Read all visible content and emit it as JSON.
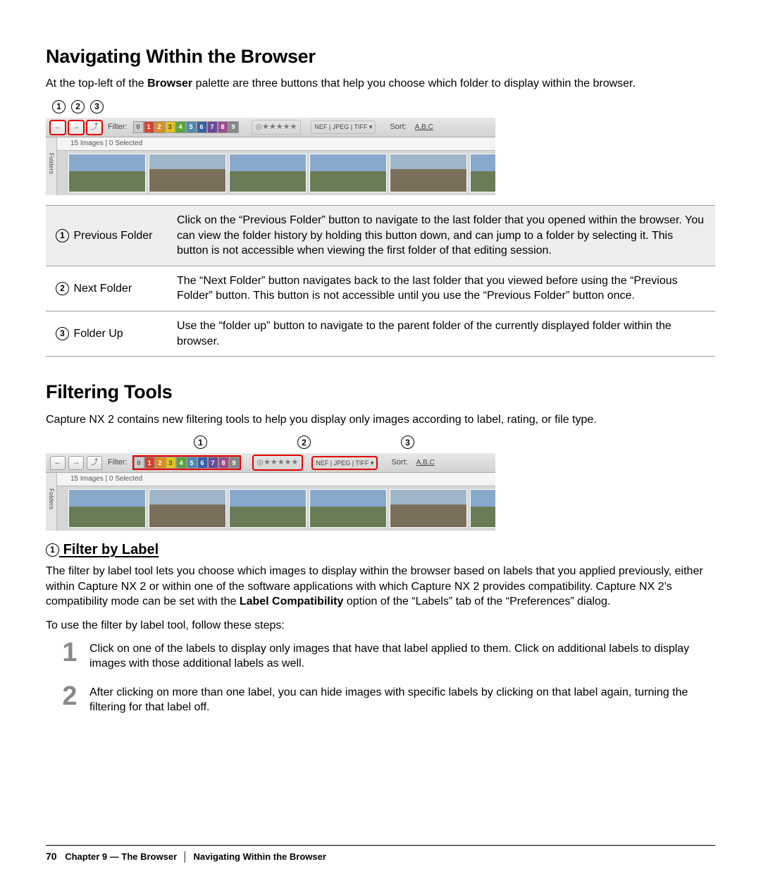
{
  "section1": {
    "heading": "Navigating Within the Browser",
    "intro_before": "At the top-left of the ",
    "intro_bold": "Browser",
    "intro_after": " palette are three buttons that help you choose which folder to display within the browser.",
    "callouts": [
      "1",
      "2",
      "3"
    ]
  },
  "screenshot1": {
    "filter_label": "Filter:",
    "labelchips": [
      {
        "t": "0",
        "c": "#cccccc",
        "fc": "#555"
      },
      {
        "t": "1",
        "c": "#d4442a",
        "fc": "#fff"
      },
      {
        "t": "2",
        "c": "#e38a1f",
        "fc": "#fff"
      },
      {
        "t": "3",
        "c": "#e2c21e",
        "fc": "#444"
      },
      {
        "t": "4",
        "c": "#5aa33a",
        "fc": "#fff"
      },
      {
        "t": "5",
        "c": "#4a8db0",
        "fc": "#fff"
      },
      {
        "t": "6",
        "c": "#3a5ea8",
        "fc": "#fff"
      },
      {
        "t": "7",
        "c": "#6b4a9a",
        "fc": "#fff"
      },
      {
        "t": "8",
        "c": "#a04a8c",
        "fc": "#fff"
      },
      {
        "t": "9",
        "c": "#888888",
        "fc": "#fff"
      }
    ],
    "stars": "◎★★★★★",
    "filetype": "NEF | JPEG | TIFF ▾",
    "sort_label": "Sort:",
    "sort_val": "A,B,C",
    "status": "15 Images | 0 Selected",
    "sidebar": "Folders"
  },
  "desc_rows": [
    {
      "n": "1",
      "label": "Previous Folder",
      "text": "Click on the “Previous Folder” button to navigate to the last folder that you opened within the browser. You can view the folder history by holding this button down, and can jump to a folder by selecting it. This button is not accessible when viewing the first folder of that editing session."
    },
    {
      "n": "2",
      "label": "Next Folder",
      "text": "The “Next Folder” button navigates back to the last folder that you viewed before using the “Previous Folder” button. This button is not accessible until you use the “Previous Folder” button once."
    },
    {
      "n": "3",
      "label": "Folder Up",
      "text": "Use the “folder up” button to navigate to the parent folder of the currently displayed folder within the browser."
    }
  ],
  "section2": {
    "heading": "Filtering Tools",
    "intro": "Capture NX 2 contains new filtering tools to help you display only images according to label, rating, or file type.",
    "callouts": [
      "1",
      "2",
      "3"
    ]
  },
  "sub1": {
    "num": "1",
    "heading": "Filter by Label",
    "p1_before": "The filter by label tool lets you choose which images to display within the browser based on labels that you applied previously, either within Capture NX 2 or within one of the software applications with which Capture NX 2 provides compatibility. Capture NX 2’s compatibility mode can be set with the ",
    "p1_bold": "Label Compatibility",
    "p1_after": " option of the “Labels” tab of the “Preferences” dialog.",
    "p2": "To use the filter by label tool, follow these steps:",
    "steps": [
      {
        "n": "1",
        "t": "Click on one of the labels to display only images that have that label applied to them. Click on additional labels to display images with those additional labels as well."
      },
      {
        "n": "2",
        "t": "After clicking on more than one label, you can hide images with specific labels by clicking on that label again, turning the filtering for that label off."
      }
    ]
  },
  "footer": {
    "page": "70",
    "chapter": "Chapter 9 — The Browser",
    "sub": "Navigating Within the Browser"
  }
}
